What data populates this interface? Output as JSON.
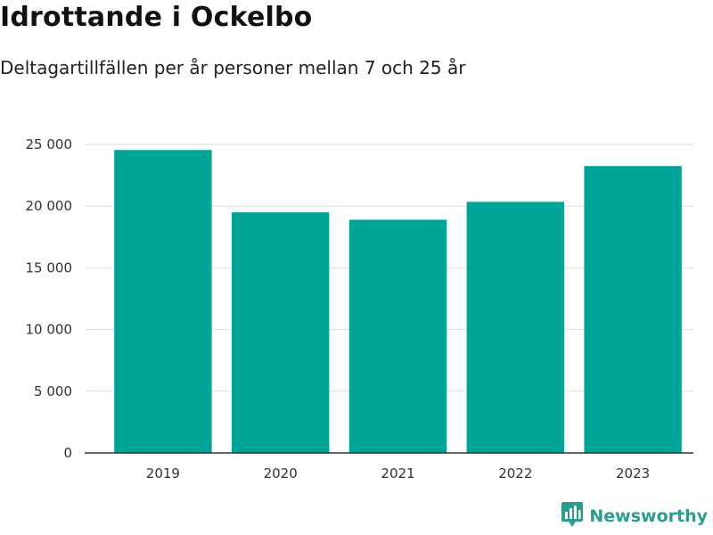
{
  "title": "Idrottande i Ockelbo",
  "subtitle": "Deltagartillfällen per år personer mellan 7 och 25 år",
  "brand": {
    "name": "Newsworthy",
    "icon": "newsworthy-logo-icon",
    "color": "#2a9d8f"
  },
  "chart_data": {
    "type": "bar",
    "categories": [
      "2019",
      "2020",
      "2021",
      "2022",
      "2023"
    ],
    "values": [
      24550,
      19500,
      18900,
      20350,
      23250
    ],
    "ylim": [
      0,
      25000
    ],
    "yticks": [
      0,
      5000,
      10000,
      15000,
      20000,
      25000
    ],
    "ytick_labels": [
      "0",
      "5 000",
      "10 000",
      "15 000",
      "20 000",
      "25 000"
    ],
    "xlabel": "",
    "ylabel": "",
    "bar_color": "#00a398",
    "grid": true,
    "legend": "none"
  }
}
